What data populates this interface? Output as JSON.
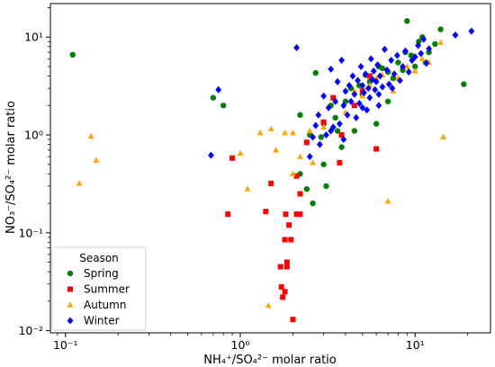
{
  "chart_data": {
    "type": "scatter",
    "title": "",
    "xlabel": "NH₄⁺/SO₄²⁻ molar ratio",
    "ylabel": "NO₃⁻/SO₄²⁻ molar ratio",
    "xscale": "log",
    "yscale": "log",
    "xlim": [
      0.082,
      27
    ],
    "ylim": [
      0.0095,
      22
    ],
    "xticks": [
      0.1,
      1,
      10
    ],
    "xtick_labels": [
      "10⁻¹",
      "10⁰",
      "10¹"
    ],
    "yticks": [
      0.01,
      0.1,
      1,
      10
    ],
    "ytick_labels": [
      "10⁻²",
      "10⁻¹",
      "10⁰",
      "10¹"
    ],
    "grid": false,
    "legend": {
      "title": "Season",
      "placement": "lower-left",
      "entries": [
        "Spring",
        "Summer",
        "Autumn",
        "Winter"
      ]
    },
    "series": [
      {
        "name": "Spring",
        "color": "#008000",
        "marker": "circle",
        "points": [
          [
            0.11,
            6.6
          ],
          [
            0.7,
            2.4
          ],
          [
            0.8,
            2.0
          ],
          [
            2.2,
            0.4
          ],
          [
            2.4,
            0.28
          ],
          [
            2.6,
            0.2
          ],
          [
            2.2,
            1.6
          ],
          [
            2.5,
            1.0
          ],
          [
            2.7,
            4.3
          ],
          [
            3.0,
            0.5
          ],
          [
            3.0,
            1.3
          ],
          [
            3.1,
            0.3
          ],
          [
            3.3,
            2.0
          ],
          [
            3.5,
            1.5
          ],
          [
            3.8,
            0.75
          ],
          [
            4.0,
            2.2
          ],
          [
            4.3,
            3.0
          ],
          [
            4.5,
            1.1
          ],
          [
            5.0,
            2.6
          ],
          [
            5.5,
            3.5
          ],
          [
            6.0,
            1.3
          ],
          [
            6.5,
            4.8
          ],
          [
            7.0,
            4.4
          ],
          [
            7.5,
            3.8
          ],
          [
            8.0,
            5.5
          ],
          [
            9.0,
            14.6
          ],
          [
            9.5,
            6.5
          ],
          [
            10.5,
            9.0
          ],
          [
            11.0,
            10.0
          ],
          [
            11.5,
            5.5
          ],
          [
            12.0,
            7.0
          ],
          [
            13.0,
            8.5
          ],
          [
            14.0,
            12.0
          ],
          [
            19.0,
            3.3
          ],
          [
            8.5,
            4.6
          ],
          [
            4.8,
            3.2
          ],
          [
            5.2,
            4.1
          ],
          [
            6.2,
            5.0
          ],
          [
            2.9,
            0.95
          ],
          [
            3.6,
            1.1
          ],
          [
            7.0,
            2.2
          ],
          [
            8.8,
            7.0
          ],
          [
            10.0,
            5.0
          ]
        ]
      },
      {
        "name": "Summer",
        "color": "#ff0000",
        "marker": "square",
        "points": [
          [
            0.85,
            0.155
          ],
          [
            0.9,
            0.58
          ],
          [
            1.4,
            0.165
          ],
          [
            1.5,
            0.32
          ],
          [
            1.7,
            0.045
          ],
          [
            1.72,
            0.028
          ],
          [
            1.75,
            0.022
          ],
          [
            1.8,
            0.025
          ],
          [
            1.8,
            0.085
          ],
          [
            1.82,
            0.155
          ],
          [
            1.85,
            0.05
          ],
          [
            1.85,
            0.045
          ],
          [
            1.9,
            0.12
          ],
          [
            1.95,
            0.085
          ],
          [
            2.0,
            0.013
          ],
          [
            2.1,
            0.155
          ],
          [
            2.1,
            0.38
          ],
          [
            2.2,
            0.155
          ],
          [
            2.2,
            0.25
          ],
          [
            2.4,
            0.84
          ],
          [
            3.0,
            1.35
          ],
          [
            3.4,
            2.4
          ],
          [
            3.7,
            0.52
          ],
          [
            3.8,
            1.0
          ],
          [
            4.5,
            2.0
          ],
          [
            5.0,
            2.8
          ],
          [
            6.0,
            0.72
          ],
          [
            5.5,
            4.0
          ]
        ]
      },
      {
        "name": "Autumn",
        "color": "#ffa500",
        "marker": "triangle",
        "points": [
          [
            0.12,
            0.32
          ],
          [
            0.14,
            0.97
          ],
          [
            0.15,
            0.55
          ],
          [
            1.0,
            0.65
          ],
          [
            1.1,
            0.28
          ],
          [
            1.3,
            1.05
          ],
          [
            1.45,
            0.018
          ],
          [
            1.5,
            1.15
          ],
          [
            1.6,
            0.7
          ],
          [
            1.8,
            1.05
          ],
          [
            2.0,
            1.05
          ],
          [
            2.0,
            0.4
          ],
          [
            2.2,
            0.6
          ],
          [
            2.5,
            1.1
          ],
          [
            3.0,
            1.2
          ],
          [
            3.5,
            2.2
          ],
          [
            4.0,
            1.7
          ],
          [
            5.0,
            2.5
          ],
          [
            5.5,
            3.2
          ],
          [
            6.0,
            3.8
          ],
          [
            6.5,
            4.1
          ],
          [
            7.0,
            0.21
          ],
          [
            7.5,
            2.8
          ],
          [
            8.0,
            3.8
          ],
          [
            10.0,
            4.5
          ],
          [
            11.0,
            6.0
          ],
          [
            12.0,
            5.5
          ],
          [
            14.0,
            8.8
          ],
          [
            14.5,
            0.95
          ],
          [
            9.0,
            5.0
          ],
          [
            4.5,
            2.8
          ],
          [
            2.6,
            0.52
          ]
        ]
      },
      {
        "name": "Winter",
        "color": "#0000ff",
        "marker": "diamond",
        "points": [
          [
            0.68,
            0.62
          ],
          [
            0.75,
            2.9
          ],
          [
            2.1,
            7.8
          ],
          [
            2.5,
            0.6
          ],
          [
            2.6,
            0.95
          ],
          [
            2.7,
            1.25
          ],
          [
            2.8,
            1.6
          ],
          [
            2.85,
            0.8
          ],
          [
            3.0,
            2.5
          ],
          [
            3.1,
            1.0
          ],
          [
            3.2,
            1.9
          ],
          [
            3.3,
            4.7
          ],
          [
            3.4,
            1.2
          ],
          [
            3.5,
            2.2
          ],
          [
            3.6,
            3.5
          ],
          [
            3.7,
            1.3
          ],
          [
            3.8,
            5.8
          ],
          [
            3.9,
            2.0
          ],
          [
            4.0,
            2.8
          ],
          [
            4.1,
            1.6
          ],
          [
            4.2,
            3.2
          ],
          [
            4.3,
            2.2
          ],
          [
            4.4,
            4.0
          ],
          [
            4.5,
            2.6
          ],
          [
            4.6,
            1.5
          ],
          [
            4.7,
            3.6
          ],
          [
            4.8,
            2.1
          ],
          [
            4.9,
            5.0
          ],
          [
            5.0,
            3.2
          ],
          [
            5.1,
            2.7
          ],
          [
            5.2,
            4.2
          ],
          [
            5.3,
            1.8
          ],
          [
            5.4,
            3.0
          ],
          [
            5.5,
            2.4
          ],
          [
            5.6,
            6.0
          ],
          [
            5.7,
            3.7
          ],
          [
            5.8,
            4.5
          ],
          [
            5.9,
            2.9
          ],
          [
            6.0,
            3.5
          ],
          [
            6.1,
            5.2
          ],
          [
            6.2,
            2.0
          ],
          [
            6.3,
            4.0
          ],
          [
            6.5,
            3.1
          ],
          [
            6.7,
            7.5
          ],
          [
            6.9,
            4.6
          ],
          [
            7.1,
            3.3
          ],
          [
            7.3,
            5.8
          ],
          [
            7.6,
            4.2
          ],
          [
            7.9,
            6.5
          ],
          [
            8.2,
            3.6
          ],
          [
            8.5,
            5.0
          ],
          [
            8.8,
            7.2
          ],
          [
            9.2,
            4.4
          ],
          [
            9.6,
            5.8
          ],
          [
            10.0,
            6.3
          ],
          [
            10.4,
            8.2
          ],
          [
            10.8,
            6.8
          ],
          [
            11.2,
            9.5
          ],
          [
            11.6,
            5.4
          ],
          [
            12.0,
            7.6
          ],
          [
            17.0,
            10.5
          ],
          [
            21.0,
            11.5
          ],
          [
            3.3,
            1.1
          ],
          [
            3.9,
            0.9
          ],
          [
            5.0,
            1.9
          ],
          [
            6.2,
            2.6
          ],
          [
            7.4,
            3.0
          ]
        ]
      }
    ]
  }
}
